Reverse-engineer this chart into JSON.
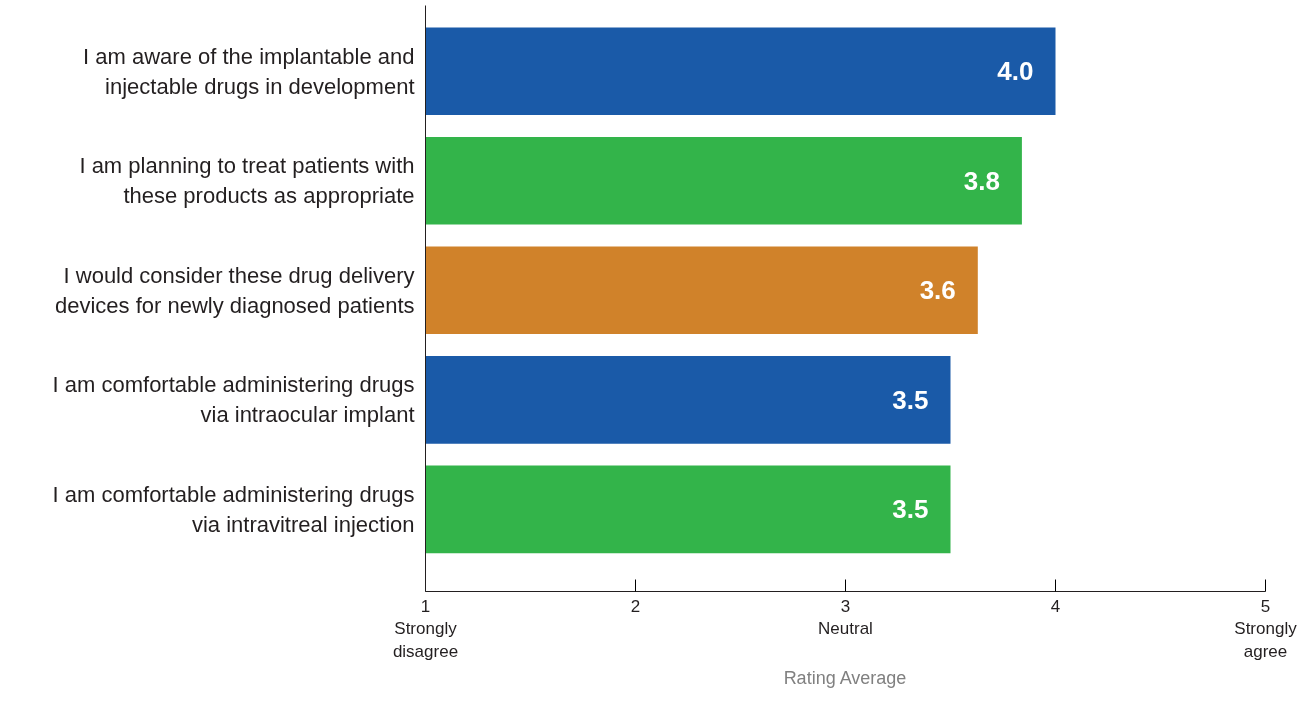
{
  "chart_data": {
    "type": "bar",
    "orientation": "horizontal",
    "xlabel": "Rating Average",
    "categories": [
      "I am aware of the implantable and injectable drugs in development",
      "I am planning to treat patients with these products as appropriate",
      "I would consider these drug delivery devices for newly diagnosed patients",
      "I am comfortable administering drugs via intraocular implant",
      "I am comfortable administering drugs via intravitreal injection"
    ],
    "values": [
      4.0,
      3.84,
      3.63,
      3.5,
      3.5
    ],
    "value_labels": [
      "4.0",
      "3.8",
      "3.6",
      "3.5",
      "3.5"
    ],
    "colors": [
      "#1a5aa8",
      "#33b44a",
      "#d0822a",
      "#1a5aa8",
      "#33b44a"
    ],
    "xlim": [
      1,
      5
    ],
    "xticks": [
      {
        "value": 1,
        "label": "1\nStrongly\ndisagree"
      },
      2,
      {
        "value": 3,
        "label": "3\nNeutral"
      },
      4,
      {
        "value": 5,
        "label": "5\nStrongly\nagree"
      }
    ],
    "grid": false
  }
}
